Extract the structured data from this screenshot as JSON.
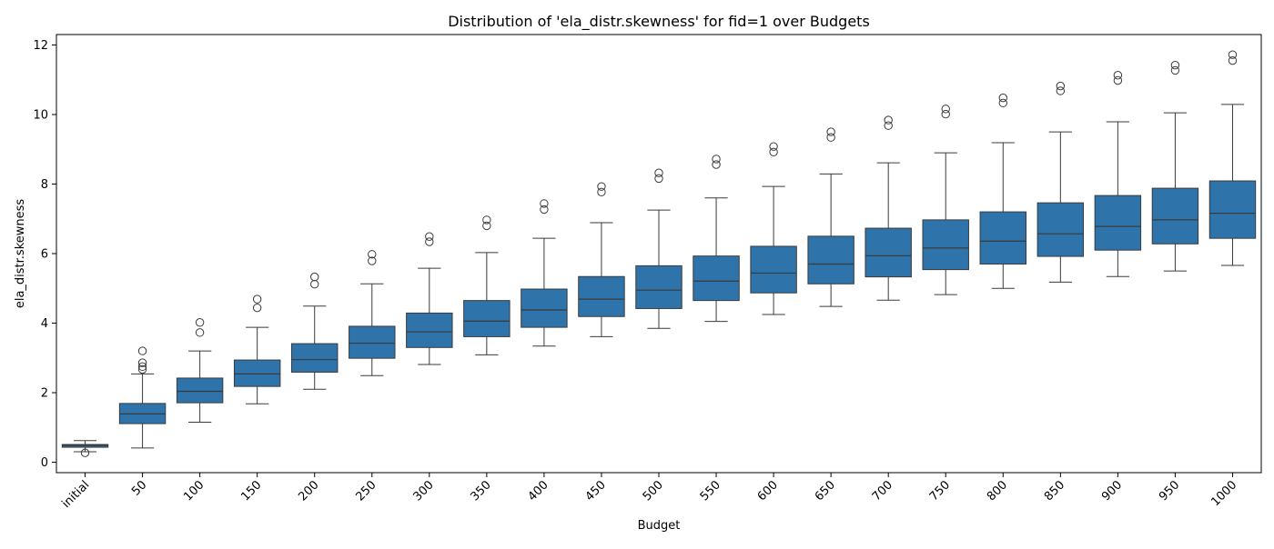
{
  "chart_data": {
    "type": "box",
    "title": "Distribution of 'ela_distr.skewness' for fid=1 over Budgets",
    "xlabel": "Budget",
    "ylabel": "ela_distr.skewness",
    "categories": [
      "initial",
      "50",
      "100",
      "150",
      "200",
      "250",
      "300",
      "350",
      "400",
      "450",
      "500",
      "550",
      "600",
      "650",
      "700",
      "750",
      "800",
      "850",
      "900",
      "950",
      "1000"
    ],
    "ylim": [
      -0.3,
      12.3
    ],
    "yticks": [
      0,
      2,
      4,
      6,
      8,
      10,
      12
    ],
    "grid": false,
    "box_color": "#2e74ab",
    "line_color": "#3a3a3a",
    "boxes": [
      {
        "whislo": 0.3,
        "q1": 0.43,
        "med": 0.48,
        "q3": 0.51,
        "whishi": 0.62,
        "fliers": [
          0.27
        ]
      },
      {
        "whislo": 0.41,
        "q1": 1.11,
        "med": 1.39,
        "q3": 1.69,
        "whishi": 2.54,
        "fliers": [
          2.67,
          2.75,
          2.86,
          3.2
        ]
      },
      {
        "whislo": 1.15,
        "q1": 1.71,
        "med": 2.04,
        "q3": 2.42,
        "whishi": 3.2,
        "fliers": [
          3.73,
          4.02
        ]
      },
      {
        "whislo": 1.68,
        "q1": 2.18,
        "med": 2.54,
        "q3": 2.94,
        "whishi": 3.88,
        "fliers": [
          4.44,
          4.69
        ]
      },
      {
        "whislo": 2.1,
        "q1": 2.59,
        "med": 2.95,
        "q3": 3.41,
        "whishi": 4.49,
        "fliers": [
          5.12,
          5.33
        ]
      },
      {
        "whislo": 2.49,
        "q1": 2.99,
        "med": 3.42,
        "q3": 3.91,
        "whishi": 5.13,
        "fliers": [
          5.79,
          5.98
        ]
      },
      {
        "whislo": 2.81,
        "q1": 3.3,
        "med": 3.75,
        "q3": 4.29,
        "whishi": 5.58,
        "fliers": [
          6.34,
          6.49
        ]
      },
      {
        "whislo": 3.09,
        "q1": 3.61,
        "med": 4.06,
        "q3": 4.65,
        "whishi": 6.03,
        "fliers": [
          6.8,
          6.97
        ]
      },
      {
        "whislo": 3.34,
        "q1": 3.88,
        "med": 4.38,
        "q3": 4.98,
        "whishi": 6.44,
        "fliers": [
          7.27,
          7.44
        ]
      },
      {
        "whislo": 3.61,
        "q1": 4.19,
        "med": 4.69,
        "q3": 5.34,
        "whishi": 6.89,
        "fliers": [
          7.77,
          7.93
        ]
      },
      {
        "whislo": 3.85,
        "q1": 4.42,
        "med": 4.95,
        "q3": 5.65,
        "whishi": 7.25,
        "fliers": [
          8.16,
          8.32
        ]
      },
      {
        "whislo": 4.05,
        "q1": 4.65,
        "med": 5.21,
        "q3": 5.93,
        "whishi": 7.6,
        "fliers": [
          8.56,
          8.72
        ]
      },
      {
        "whislo": 4.25,
        "q1": 4.87,
        "med": 5.44,
        "q3": 6.21,
        "whishi": 7.93,
        "fliers": [
          8.92,
          9.08
        ]
      },
      {
        "whislo": 4.48,
        "q1": 5.13,
        "med": 5.7,
        "q3": 6.5,
        "whishi": 8.29,
        "fliers": [
          9.34,
          9.5
        ]
      },
      {
        "whislo": 4.66,
        "q1": 5.33,
        "med": 5.94,
        "q3": 6.73,
        "whishi": 8.61,
        "fliers": [
          9.68,
          9.84
        ]
      },
      {
        "whislo": 4.82,
        "q1": 5.54,
        "med": 6.16,
        "q3": 6.97,
        "whishi": 8.9,
        "fliers": [
          10.01,
          10.16
        ]
      },
      {
        "whislo": 5.0,
        "q1": 5.7,
        "med": 6.36,
        "q3": 7.2,
        "whishi": 9.19,
        "fliers": [
          10.33,
          10.48
        ]
      },
      {
        "whislo": 5.18,
        "q1": 5.92,
        "med": 6.57,
        "q3": 7.46,
        "whishi": 9.5,
        "fliers": [
          10.68,
          10.82
        ]
      },
      {
        "whislo": 5.34,
        "q1": 6.1,
        "med": 6.78,
        "q3": 7.67,
        "whishi": 9.79,
        "fliers": [
          10.98,
          11.13
        ]
      },
      {
        "whislo": 5.5,
        "q1": 6.28,
        "med": 6.97,
        "q3": 7.88,
        "whishi": 10.05,
        "fliers": [
          11.27,
          11.42
        ]
      },
      {
        "whislo": 5.66,
        "q1": 6.44,
        "med": 7.16,
        "q3": 8.09,
        "whishi": 10.29,
        "fliers": [
          11.55,
          11.72
        ]
      }
    ]
  }
}
